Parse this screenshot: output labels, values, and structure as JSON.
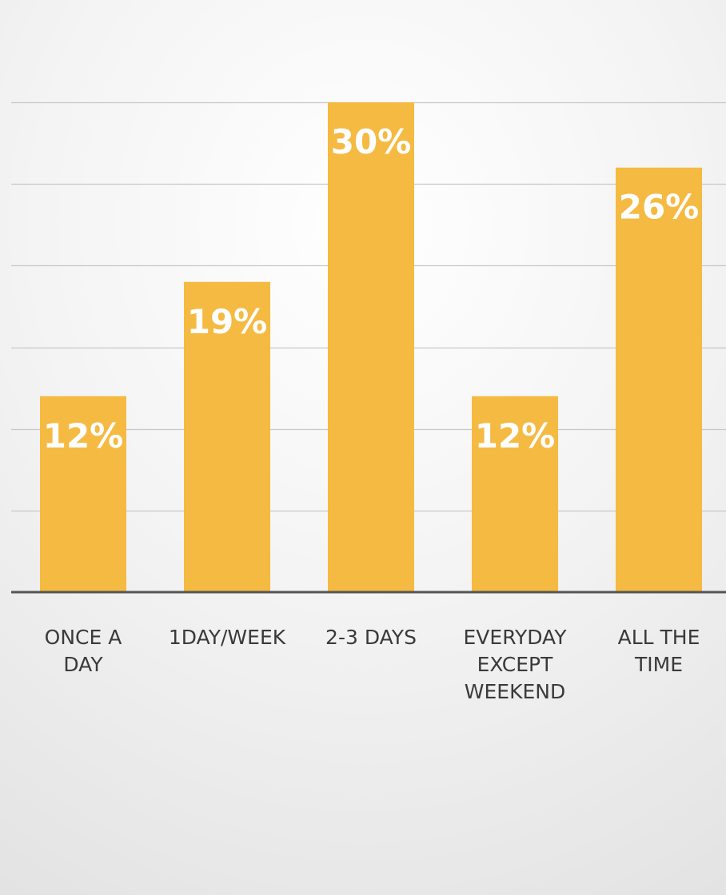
{
  "chart_data": {
    "type": "bar",
    "title": "",
    "xlabel": "",
    "ylabel": "",
    "categories": [
      [
        "ONCE A",
        "DAY"
      ],
      [
        "1DAY/WEEK"
      ],
      [
        "2-3 DAYS"
      ],
      [
        "EVERYDAY",
        "EXCEPT",
        "WEEKEND"
      ],
      [
        "ALL THE",
        "TIME"
      ]
    ],
    "values": [
      12,
      19,
      30,
      12,
      26
    ],
    "value_labels": [
      "12%",
      "19%",
      "30%",
      "12%",
      "26%"
    ],
    "ylim": [
      0,
      30
    ],
    "y_gridline_step": 5,
    "grid": true,
    "legend": "none",
    "colors": {
      "bar": "#F5BA42",
      "bar_label": "#FFFFFF",
      "gridline": "#c8c8c8",
      "axis": "#555555",
      "category_label": "#3a3a3a"
    }
  }
}
